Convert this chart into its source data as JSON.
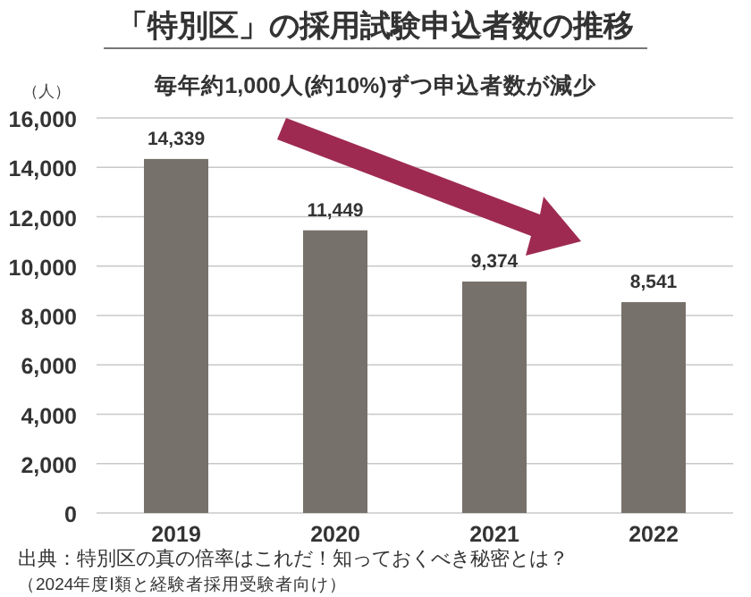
{
  "chart_data": {
    "type": "bar",
    "title": "「特別区」の採用試験申込者数の推移",
    "subtitle": "毎年約1,000人(約10%)ずつ申込者数が減少",
    "ylabel": "（人）",
    "categories": [
      "2019",
      "2020",
      "2021",
      "2022"
    ],
    "values": [
      14339,
      11449,
      9374,
      8541
    ],
    "value_labels": [
      "14,339",
      "11,449",
      "9,374",
      "8,541"
    ],
    "color": "#77716b",
    "ylim": [
      0,
      16000
    ],
    "yticks": [
      {
        "value": 0,
        "label": "0"
      },
      {
        "value": 2000,
        "label": "2,000"
      },
      {
        "value": 4000,
        "label": "4,000"
      },
      {
        "value": 6000,
        "label": "6,000"
      },
      {
        "value": 8000,
        "label": "8,000"
      },
      {
        "value": 10000,
        "label": "10,000"
      },
      {
        "value": 12000,
        "label": "12,000"
      },
      {
        "value": 14000,
        "label": "14,000"
      },
      {
        "value": 16000,
        "label": "16,000"
      }
    ],
    "grid": "y",
    "annotations": [
      "出典：特別区の真の倍率はこれだ！知っておくべき秘密とは？",
      "（2024年度Ⅰ類と経験者採用受験者向け）"
    ]
  }
}
